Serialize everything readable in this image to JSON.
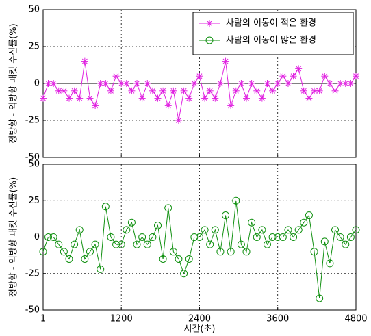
{
  "chart_data": [
    {
      "type": "line",
      "ylabel": "정방향 - 역방향 패킷 수신률(%)",
      "x": [
        1,
        80,
        160,
        240,
        320,
        400,
        480,
        560,
        640,
        720,
        800,
        880,
        960,
        1040,
        1120,
        1200,
        1280,
        1360,
        1440,
        1520,
        1600,
        1680,
        1760,
        1840,
        1920,
        2000,
        2080,
        2160,
        2240,
        2320,
        2400,
        2480,
        2560,
        2640,
        2720,
        2800,
        2880,
        2960,
        3040,
        3120,
        3200,
        3280,
        3360,
        3440,
        3520,
        3600,
        3680,
        3760,
        3840,
        3920,
        4000,
        4080,
        4160,
        4240,
        4320,
        4400,
        4480,
        4560,
        4640,
        4720,
        4800
      ],
      "series": [
        {
          "name": "사람의 이동이 적은 환경",
          "color": "#e020e0",
          "marker": "asterisk",
          "values": [
            -10,
            0,
            0,
            -5,
            -5,
            -10,
            -5,
            -10,
            15,
            -10,
            -15,
            0,
            0,
            -5,
            5,
            0,
            0,
            -5,
            0,
            -10,
            0,
            -5,
            -10,
            -5,
            -15,
            -5,
            -25,
            -5,
            -10,
            0,
            5,
            -10,
            -5,
            -10,
            0,
            15,
            -15,
            -5,
            0,
            -10,
            0,
            -5,
            -10,
            0,
            -5,
            0,
            5,
            0,
            5,
            10,
            -5,
            -10,
            -5,
            -5,
            5,
            0,
            -5,
            0,
            0,
            0,
            5
          ]
        }
      ],
      "xlim": [
        1,
        4800
      ],
      "xticks": [
        1,
        1200,
        2400,
        3600,
        4800
      ],
      "ylim": [
        -50,
        50
      ],
      "yticks": [
        -50,
        -25,
        0,
        25,
        50
      ],
      "grid": true,
      "legend": "upper right"
    },
    {
      "type": "line",
      "ylabel": "정방향 - 역방향 패킷 수신률(%)",
      "xlabel": "시간(초)",
      "x": [
        1,
        80,
        160,
        240,
        320,
        400,
        480,
        560,
        640,
        720,
        800,
        880,
        960,
        1040,
        1120,
        1200,
        1280,
        1360,
        1440,
        1520,
        1600,
        1680,
        1760,
        1840,
        1920,
        2000,
        2080,
        2160,
        2240,
        2320,
        2400,
        2480,
        2560,
        2640,
        2720,
        2800,
        2880,
        2960,
        3040,
        3120,
        3200,
        3280,
        3360,
        3440,
        3520,
        3600,
        3680,
        3760,
        3840,
        3920,
        4000,
        4080,
        4160,
        4240,
        4320,
        4400,
        4480,
        4560,
        4640,
        4720,
        4800
      ],
      "series": [
        {
          "name": "사람의 이동이 많은 환경",
          "color": "#109010",
          "marker": "circle",
          "values": [
            -10,
            0,
            0,
            -5,
            -10,
            -15,
            -5,
            5,
            -15,
            -10,
            -5,
            -22,
            21,
            0,
            -5,
            -5,
            5,
            10,
            -5,
            0,
            -5,
            0,
            8,
            -15,
            20,
            -10,
            -15,
            -25,
            -15,
            0,
            0,
            5,
            -5,
            5,
            -10,
            15,
            -10,
            25,
            -5,
            -10,
            10,
            0,
            5,
            -5,
            0,
            0,
            0,
            5,
            0,
            5,
            10,
            15,
            -10,
            -42,
            -3,
            -18,
            5,
            0,
            -5,
            0,
            5
          ]
        }
      ],
      "xlim": [
        1,
        4800
      ],
      "xticks": [
        1,
        1200,
        2400,
        3600,
        4800
      ],
      "ylim": [
        -50,
        50
      ],
      "yticks": [
        -50,
        -25,
        0,
        25,
        50
      ],
      "grid": true
    }
  ]
}
